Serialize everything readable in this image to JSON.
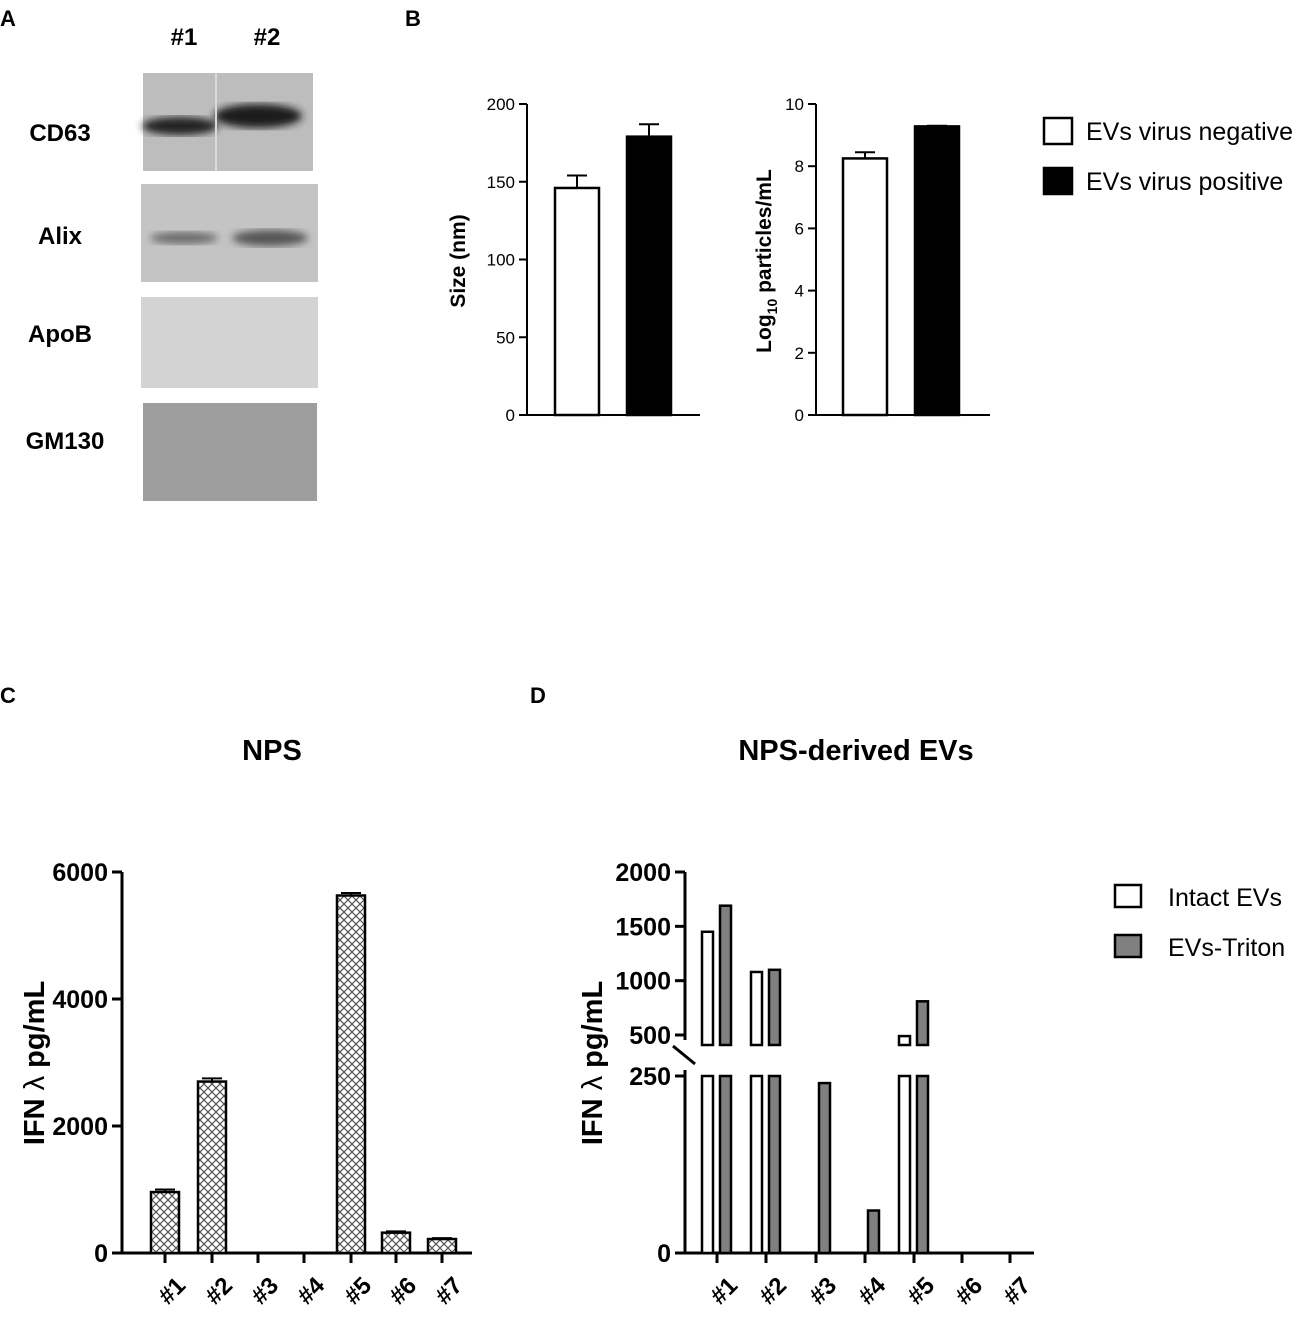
{
  "panels": {
    "A": "A",
    "B": "B",
    "C": "C",
    "D": "D"
  },
  "colors": {
    "bar_negative": "#ffffff",
    "bar_positive": "#000000",
    "bar_triton": "#808080",
    "blot_bg": "#c8c8c8"
  },
  "blot": {
    "lanes": [
      "#1",
      "#2"
    ],
    "rows": [
      "CD63",
      "Alix",
      "ApoB",
      "GM130"
    ]
  },
  "chart_data": [
    {
      "id": "B-size",
      "type": "bar",
      "title": "",
      "xlabel": "",
      "ylabel": "Size (nm)",
      "ylim": [
        0,
        200
      ],
      "yticks": [
        "0",
        "50",
        "100",
        "150",
        "200"
      ],
      "categories": [
        "EVs virus negative",
        "EVs virus positive"
      ],
      "values": [
        146,
        179
      ],
      "errors": [
        8,
        8
      ],
      "fills": [
        "#ffffff",
        "#000000"
      ]
    },
    {
      "id": "B-particles",
      "type": "bar",
      "title": "",
      "xlabel": "",
      "ylabel_parts": [
        "Log",
        "10",
        " particles/mL"
      ],
      "ylim": [
        0,
        10
      ],
      "yticks": [
        "0",
        "2",
        "4",
        "6",
        "8",
        "10"
      ],
      "categories": [
        "EVs virus negative",
        "EVs virus positive"
      ],
      "values": [
        8.25,
        9.28
      ],
      "errors": [
        0.2,
        0.02
      ],
      "fills": [
        "#ffffff",
        "#000000"
      ],
      "legend": {
        "placement": "right",
        "entries": [
          "EVs virus negative",
          "EVs virus positive"
        ]
      }
    },
    {
      "id": "C",
      "type": "bar",
      "title": "NPS",
      "xlabel": "",
      "ylabel_parts": [
        "IFN ",
        "λ",
        " pg/mL"
      ],
      "ylim": [
        0,
        6000
      ],
      "yticks": [
        "0",
        "2000",
        "4000",
        "6000"
      ],
      "categories": [
        "#1",
        "#2",
        "#3",
        "#4",
        "#5",
        "#6",
        "#7"
      ],
      "values": [
        960,
        2700,
        0,
        0,
        5630,
        320,
        220
      ],
      "errors": [
        40,
        50,
        0,
        0,
        40,
        20,
        15
      ],
      "pattern": "crosshatch"
    },
    {
      "id": "D",
      "type": "bar",
      "title": "NPS-derived EVs",
      "xlabel": "",
      "ylabel_parts": [
        "IFN ",
        "λ",
        " pg/mL"
      ],
      "ylim": [
        0,
        2000
      ],
      "axis_break": [
        250,
        500
      ],
      "yticks": [
        "0",
        "250",
        "500",
        "1000",
        "1500",
        "2000"
      ],
      "categories": [
        "#1",
        "#2",
        "#3",
        "#4",
        "#5",
        "#6",
        "#7"
      ],
      "series": [
        {
          "name": "Intact EVs",
          "values": [
            1450,
            1080,
            0,
            0,
            490,
            0,
            0
          ]
        },
        {
          "name": "EVs-Triton",
          "values": [
            1690,
            1100,
            240,
            60,
            810,
            0,
            0
          ]
        }
      ],
      "legend": {
        "placement": "right",
        "entries": [
          "Intact EVs",
          "EVs-Triton"
        ]
      }
    }
  ]
}
